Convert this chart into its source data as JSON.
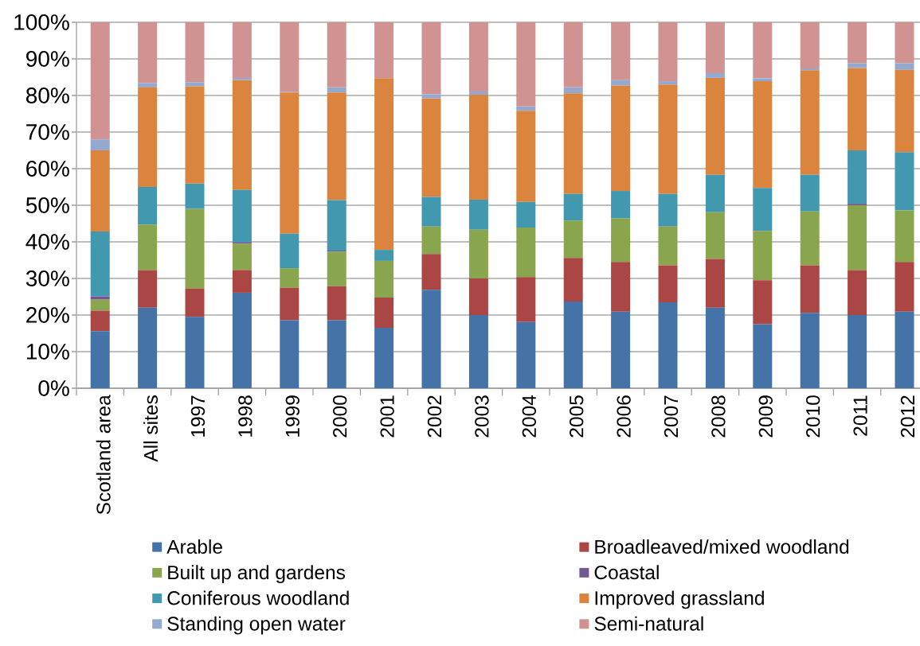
{
  "chart_data": {
    "type": "bar",
    "stacked": true,
    "categories": [
      "Scotland area",
      "All sites",
      "1997",
      "1998",
      "1999",
      "2000",
      "2001",
      "2002",
      "2003",
      "2004",
      "2005",
      "2006",
      "2007",
      "2008",
      "2009",
      "2010",
      "2011",
      "2012"
    ],
    "series": [
      {
        "name": "Arable",
        "color": "#4572A7",
        "values": [
          15.6,
          22.0,
          19.5,
          26.1,
          18.6,
          18.6,
          16.5,
          26.9,
          20.0,
          18.1,
          23.7,
          20.9,
          23.5,
          22.0,
          17.5,
          20.6,
          20.0,
          20.9
        ]
      },
      {
        "name": "Broadleaved/mixed woodland",
        "color": "#AA4643",
        "values": [
          5.6,
          10.3,
          7.8,
          6.2,
          8.9,
          9.3,
          8.3,
          9.8,
          10.0,
          12.3,
          11.9,
          13.6,
          10.1,
          13.3,
          12.0,
          13.0,
          12.3,
          13.6
        ]
      },
      {
        "name": "Built up and gardens",
        "color": "#89A54E",
        "values": [
          3.0,
          12.4,
          21.7,
          7.2,
          5.3,
          9.4,
          10.0,
          7.5,
          13.3,
          13.5,
          10.2,
          11.9,
          10.6,
          12.8,
          13.5,
          14.7,
          17.7,
          14.1
        ]
      },
      {
        "name": "Coastal",
        "color": "#71588F",
        "values": [
          0.9,
          0,
          0,
          0.4,
          0,
          0.3,
          0,
          0,
          0,
          0,
          0,
          0,
          0,
          0,
          0,
          0,
          0.4,
          0
        ]
      },
      {
        "name": "Coniferous woodland",
        "color": "#4198AF",
        "values": [
          17.7,
          10.3,
          6.9,
          14.3,
          9.4,
          13.8,
          3.0,
          8.1,
          8.2,
          7.0,
          7.3,
          7.5,
          8.9,
          10.2,
          11.7,
          10.0,
          14.6,
          15.9
        ]
      },
      {
        "name": "Improved grassland",
        "color": "#DB843D",
        "values": [
          22.2,
          27.2,
          26.6,
          30.0,
          38.6,
          29.4,
          46.9,
          26.9,
          28.7,
          24.9,
          27.5,
          28.8,
          29.9,
          26.5,
          29.2,
          28.6,
          22.5,
          22.5
        ]
      },
      {
        "name": "Standing open water",
        "color": "#93A9CF",
        "values": [
          3.0,
          1.2,
          1.1,
          0.6,
          0.2,
          1.4,
          0,
          1.1,
          0.9,
          1.2,
          1.6,
          1.5,
          0.9,
          1.3,
          0.8,
          0.5,
          1.3,
          1.8
        ]
      },
      {
        "name": "Semi-natural",
        "color": "#D19392",
        "values": [
          32.0,
          16.6,
          16.4,
          15.2,
          19.0,
          17.8,
          15.3,
          19.7,
          18.9,
          23.0,
          17.8,
          15.8,
          16.1,
          13.9,
          15.3,
          12.6,
          11.2,
          11.2
        ]
      }
    ],
    "ylim": [
      0,
      100
    ],
    "yticks": [
      {
        "value": 0,
        "label": "0%"
      },
      {
        "value": 10,
        "label": "10%"
      },
      {
        "value": 20,
        "label": "20%"
      },
      {
        "value": 30,
        "label": "30%"
      },
      {
        "value": 40,
        "label": "40%"
      },
      {
        "value": 50,
        "label": "50%"
      },
      {
        "value": 60,
        "label": "60%"
      },
      {
        "value": 70,
        "label": "70%"
      },
      {
        "value": 80,
        "label": "80%"
      },
      {
        "value": 90,
        "label": "90%"
      },
      {
        "value": 100,
        "label": "100%"
      }
    ],
    "grid": "y",
    "legend": "bottom"
  }
}
